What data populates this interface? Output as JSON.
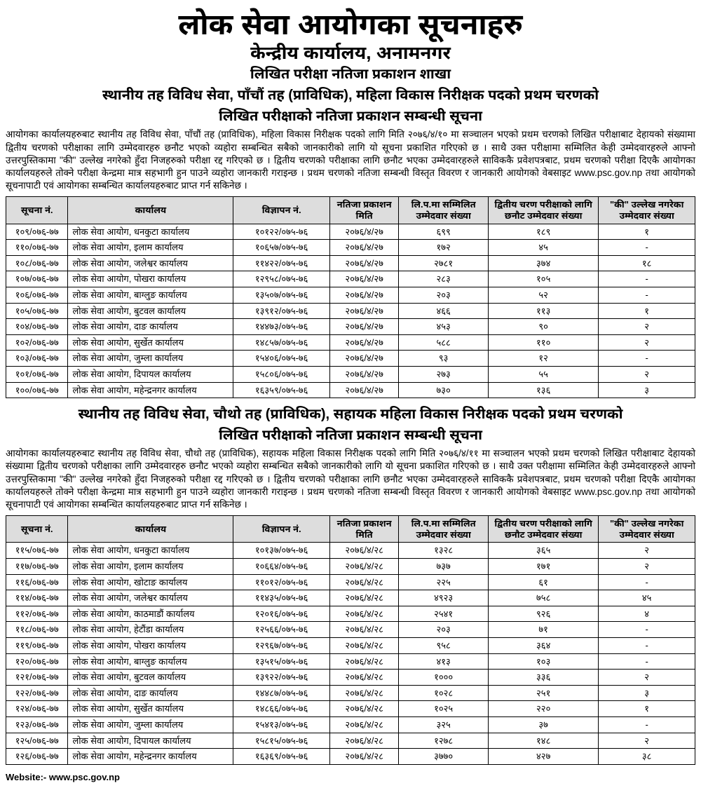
{
  "header": {
    "main_title": "लोक सेवा आयोगका सूचनाहरु",
    "sub_title": "केन्द्रीय कार्यालय, अनामनगर",
    "section": "लिखित परीक्षा नतिजा प्रकाशन शाखा"
  },
  "notice1": {
    "heading_line1": "स्थानीय तह विविध सेवा, पाँचौं तह (प्राविधिक), महिला विकास निरीक्षक पदको प्रथम चरणको",
    "heading_line2": "लिखित परीक्षाको नतिजा प्रकाशन सम्बन्धी सूचना",
    "body": "आयोगका कार्यालयहरुबाट स्थानीय तह विविध सेवा, पाँचौं तह (प्राविधिक), महिला विकास निरीक्षक पदको लागि मिति २०७६/४/१० मा सञ्चालन भएको प्रथम चरणको लिखित परीक्षाबाट देहायको संख्यामा द्वितीय चरणको परीक्षाका लागि उम्मेदवारहरु छनौट भएको व्यहोरा सम्बन्धित सबैको जानकारीको लागि यो सूचना प्रकाशित गरिएको छ । साथै उक्त परीक्षामा सम्मिलित केही उम्मेदवारहरुले आफ्नो उत्तरपुस्तिकामा \"की\" उल्लेख नगरेको हुँदा निजहरुको परीक्षा रद्द गरिएको छ । द्वितीय चरणको परीक्षाका लागि छनौट भएका उम्मेदवारहरुले साविककै प्रवेशपत्रबाट, प्रथम चरणको परीक्षा दिएकै आयोगका कार्यालयहरुले तोक्ने परीक्षा केन्द्रमा मात्र सहभागी हुन पाउने व्यहोरा जानकारी गराइन्छ । प्रथम चरणको नतिजा सम्बन्धी विस्तृत विवरण र जानकारी आयोगको वेबसाइट www.psc.gov.np तथा आयोगको सूचनापाटी एवं आयोगका सम्बन्धित कार्यालयहरुबाट प्राप्त गर्न सकिनेछ ।"
  },
  "table_headers": {
    "sn": "सूचना नं.",
    "office": "कार्यालय",
    "adv": "विज्ञापन नं.",
    "date": "नतिजा प्रकाशन मिति",
    "applied": "लि.प.मा सम्मिलित उम्मेदवार संख्या",
    "selected": "द्वितीय चरण परीक्षाको लागि छनौट उम्मेदवार संख्या",
    "ki": "\"की\" उल्लेख नगरेका उम्मेदवार संख्या"
  },
  "table1_rows": [
    {
      "sn": "१०९/०७६-७७",
      "office": "लोक सेवा आयोग, धनकुटा कार्यालय",
      "adv": "१०१२२/०७५-७६",
      "date": "२०७६/४/२७",
      "app": "६९९",
      "sel": "१८९",
      "ki": "१"
    },
    {
      "sn": "११०/०७६-७७",
      "office": "लोक सेवा आयोग, इलाम कार्यालय",
      "adv": "१०६५७/०७५-७६",
      "date": "२०७६/४/२७",
      "app": "१७२",
      "sel": "४५",
      "ki": "-"
    },
    {
      "sn": "१०८/०७६-७७",
      "office": "लोक सेवा आयोग, जलेश्वर कार्यालय",
      "adv": "११४२२/०७५-७६",
      "date": "२०७६/४/२७",
      "app": "२७८१",
      "sel": "३७४",
      "ki": "१८"
    },
    {
      "sn": "१०७/०७६-७७",
      "office": "लोक सेवा आयोग, पोखरा कार्यालय",
      "adv": "१२९५८/०७५-७६",
      "date": "२०७६/४/२७",
      "app": "२८३",
      "sel": "१०५",
      "ki": "-"
    },
    {
      "sn": "१०६/०७६-७७",
      "office": "लोक सेवा आयोग, बाग्लुङ कार्यालय",
      "adv": "१३५०७/०७५-७६",
      "date": "२०७६/४/२७",
      "app": "२०३",
      "sel": "५२",
      "ki": "-"
    },
    {
      "sn": "१०५/०७६-७७",
      "office": "लोक सेवा आयोग, बुटवल कार्यालय",
      "adv": "१३९१२/०७५-७६",
      "date": "२०७६/४/२७",
      "app": "४६६",
      "sel": "११३",
      "ki": "१"
    },
    {
      "sn": "१०४/०७६-७७",
      "office": "लोक सेवा आयोग, दाङ कार्यालय",
      "adv": "१४४७३/०७५-७६",
      "date": "२०७६/४/२७",
      "app": "४५३",
      "sel": "९०",
      "ki": "२"
    },
    {
      "sn": "१०२/०७६-७७",
      "office": "लोक सेवा आयोग, सुर्खेत कार्यालय",
      "adv": "१४८५७/०७५-७६",
      "date": "२०७६/४/२७",
      "app": "५८८",
      "sel": "११०",
      "ki": "२"
    },
    {
      "sn": "१०३/०७६-७७",
      "office": "लोक सेवा आयोग, जुम्ला कार्यालय",
      "adv": "१५४०६/०७५-७६",
      "date": "२०७६/४/२७",
      "app": "९३",
      "sel": "१२",
      "ki": "-"
    },
    {
      "sn": "१०१/०७६-७७",
      "office": "लोक सेवा आयोग, दिपायल कार्यालय",
      "adv": "१५८०६/०७५-७६",
      "date": "२०७६/४/२७",
      "app": "२७३",
      "sel": "५५",
      "ki": "२"
    },
    {
      "sn": "१००/०७६-७७",
      "office": "लोक सेवा आयोग, महेन्द्रनगर कार्यालय",
      "adv": "१६३५९/०७५-७६",
      "date": "२०७६/४/२७",
      "app": "७३०",
      "sel": "१३६",
      "ki": "३"
    }
  ],
  "notice2": {
    "heading_line1": "स्थानीय तह विविध सेवा, चौथो तह (प्राविधिक), सहायक महिला विकास निरीक्षक पदको प्रथम चरणको",
    "heading_line2": "लिखित परीक्षाको नतिजा प्रकाशन सम्बन्धी सूचना",
    "body": "आयोगका कार्यालयहरुबाट स्थानीय तह विविध सेवा, चौथो तह (प्राविधिक), सहायक महिला विकास निरीक्षक पदको लागि मिति २०७६/४/११ मा सञ्चालन भएको प्रथम चरणको लिखित परीक्षाबाट देहायको संख्यामा द्वितीय चरणको परीक्षाका लागि उम्मेदवारहरु छनौट भएको व्यहोरा सम्बन्धित सबैको जानकारीको लागि यो सूचना प्रकाशित गरिएको छ । साथै उक्त परीक्षामा सम्मिलित केही उम्मेदवारहरुले आफ्नो उत्तरपुस्तिकामा \"की\" उल्लेख नगरेको हुँदा निजहरुको परीक्षा रद्द गरिएको छ । द्वितीय चरणको परीक्षाका लागि छनौट भएका उम्मेदवारहरुले साविककै प्रवेशपत्रबाट, प्रथम चरणको परीक्षा दिएकै आयोगका कार्यालयहरुले तोक्ने परीक्षा केन्द्रमा मात्र सहभागी हुन पाउने व्यहोरा जानकारी गराइन्छ । प्रथम चरणको नतिजा सम्बन्धी विस्तृत विवरण र जानकारी आयोगको वेबसाइट www.psc.gov.np तथा आयोगको सूचनापाटी एवं आयोगका सम्बन्धित कार्यालयहरुबाट प्राप्त गर्न सकिनेछ ।"
  },
  "table2_rows": [
    {
      "sn": "११५/०७६-७७",
      "office": "लोक सेवा आयोग, धनकुटा कार्यालय",
      "adv": "१०१३७/०७५-७६",
      "date": "२०७६/४/२८",
      "app": "१३२८",
      "sel": "३६५",
      "ki": "२"
    },
    {
      "sn": "११७/०७६-७७",
      "office": "लोक सेवा आयोग, इलाम कार्यालय",
      "adv": "१०६६४/०७५-७६",
      "date": "२०७६/४/२८",
      "app": "७३७",
      "sel": "१७१",
      "ki": "२"
    },
    {
      "sn": "११६/०७६-७७",
      "office": "लोक सेवा आयोग, खोटाङ कार्यालय",
      "adv": "११०१२/०७५-७६",
      "date": "२०७६/४/२८",
      "app": "२२५",
      "sel": "६१",
      "ki": "-"
    },
    {
      "sn": "११४/०७६-७७",
      "office": "लोक सेवा आयोग, जलेश्वर कार्यालय",
      "adv": "११४३५/०७५-७६",
      "date": "२०७६/४/२८",
      "app": "४९२३",
      "sel": "७५८",
      "ki": "४५"
    },
    {
      "sn": "११२/०७६-७७",
      "office": "लोक सेवा आयोग, काठमाडौं कार्यालय",
      "adv": "१२०१६/०७५-७६",
      "date": "२०७६/४/२८",
      "app": "२५४१",
      "sel": "९२६",
      "ki": "४"
    },
    {
      "sn": "११८/०७६-७७",
      "office": "लोक सेवा आयोग, हेटौंडा कार्यालय",
      "adv": "१२५६६/०७५-७६",
      "date": "२०७६/४/२८",
      "app": "२०३",
      "sel": "७१",
      "ki": "-"
    },
    {
      "sn": "११९/०७६-७७",
      "office": "लोक सेवा आयोग, पोखरा कार्यालय",
      "adv": "१२९६७/०७५-७६",
      "date": "२०७६/४/२८",
      "app": "९५८",
      "sel": "३६४",
      "ki": "-"
    },
    {
      "sn": "१२०/०७६-७७",
      "office": "लोक सेवा आयोग, बाग्लुङ कार्यालय",
      "adv": "१३५१५/०७५-७६",
      "date": "२०७६/४/२८",
      "app": "४१३",
      "sel": "१०३",
      "ki": "-"
    },
    {
      "sn": "१२१/०७६-७७",
      "office": "लोक सेवा आयोग, बुटवल कार्यालय",
      "adv": "१३९२२/०७५-७६",
      "date": "२०७६/४/२८",
      "app": "१०००",
      "sel": "३३६",
      "ki": "२"
    },
    {
      "sn": "१२२/०७६-७७",
      "office": "लोक सेवा आयोग, दाङ कार्यालय",
      "adv": "१४४८७/०७५-७६",
      "date": "२०७६/४/२८",
      "app": "१०२८",
      "sel": "२५१",
      "ki": "३"
    },
    {
      "sn": "१२४/०७६-७७",
      "office": "लोक सेवा आयोग, सुर्खेत कार्यालय",
      "adv": "१४८६६/०७५-७६",
      "date": "२०७६/४/२८",
      "app": "१०२५",
      "sel": "२२०",
      "ki": "१"
    },
    {
      "sn": "१२३/०७६-७७",
      "office": "लोक सेवा आयोग, जुम्ला कार्यालय",
      "adv": "१५४१३/०७५-७६",
      "date": "२०७६/४/२८",
      "app": "३२५",
      "sel": "३७",
      "ki": "-"
    },
    {
      "sn": "१२५/०७६-७७",
      "office": "लोक सेवा आयोग, दिपायल कार्यालय",
      "adv": "१५८१५/०७५-७६",
      "date": "२०७६/४/२८",
      "app": "१२७८",
      "sel": "१४८",
      "ki": "२"
    },
    {
      "sn": "१२६/०७६-७७",
      "office": "लोक सेवा आयोग, महेन्द्रनगर कार्यालय",
      "adv": "१६३६९/०७५-७६",
      "date": "२०७६/४/२८",
      "app": "३७७०",
      "sel": "४२७",
      "ki": "३८"
    }
  ],
  "footer": {
    "website_label": "Website:- www.psc.gov.np"
  }
}
